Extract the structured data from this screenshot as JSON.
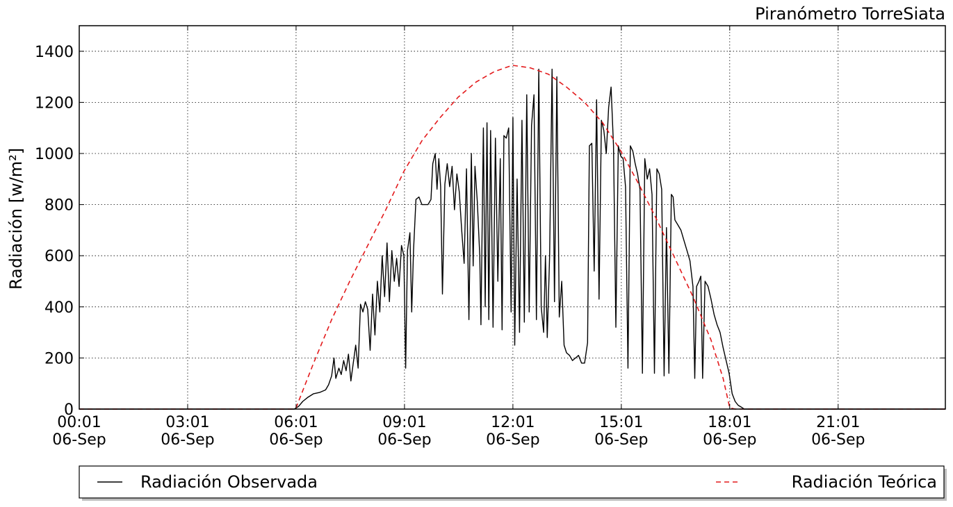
{
  "chart_data": {
    "type": "line",
    "title": "Piranómetro TorreSiata",
    "ylabel": "Radiación [w/m²]",
    "xlabel": "",
    "xlim": [
      "2000-09-06 00:01",
      "2000-09-06 23:59"
    ],
    "ylim": [
      0,
      1500
    ],
    "grid": true,
    "legend_placement": "bottom, outside plot",
    "y_ticks": [
      0,
      200,
      400,
      600,
      800,
      1000,
      1200,
      1400
    ],
    "x_ticks": [
      {
        "time": "00:01",
        "line1": "00:01",
        "line2": "06-Sep"
      },
      {
        "time": "03:01",
        "line1": "03:01",
        "line2": "06-Sep"
      },
      {
        "time": "06:01",
        "line1": "06:01",
        "line2": "06-Sep"
      },
      {
        "time": "09:01",
        "line1": "09:01",
        "line2": "06-Sep"
      },
      {
        "time": "12:01",
        "line1": "12:01",
        "line2": "06-Sep"
      },
      {
        "time": "15:01",
        "line1": "15:01",
        "line2": "06-Sep"
      },
      {
        "time": "18:01",
        "line1": "18:01",
        "line2": "06-Sep"
      },
      {
        "time": "21:01",
        "line1": "21:01",
        "line2": "06-Sep"
      }
    ],
    "series": [
      {
        "name": "Radiación Observada",
        "color": "#000000",
        "style": "solid",
        "points": [
          [
            "00:01",
            0
          ],
          [
            "05:58",
            0
          ],
          [
            "06:05",
            10
          ],
          [
            "06:12",
            30
          ],
          [
            "06:20",
            45
          ],
          [
            "06:30",
            60
          ],
          [
            "06:40",
            65
          ],
          [
            "06:50",
            75
          ],
          [
            "06:55",
            95
          ],
          [
            "07:00",
            130
          ],
          [
            "07:04",
            200
          ],
          [
            "07:07",
            120
          ],
          [
            "07:12",
            160
          ],
          [
            "07:16",
            135
          ],
          [
            "07:20",
            190
          ],
          [
            "07:24",
            150
          ],
          [
            "07:28",
            215
          ],
          [
            "07:32",
            110
          ],
          [
            "07:36",
            180
          ],
          [
            "07:40",
            250
          ],
          [
            "07:44",
            160
          ],
          [
            "07:48",
            410
          ],
          [
            "07:52",
            380
          ],
          [
            "07:56",
            420
          ],
          [
            "08:00",
            390
          ],
          [
            "08:04",
            230
          ],
          [
            "08:08",
            450
          ],
          [
            "08:12",
            290
          ],
          [
            "08:16",
            500
          ],
          [
            "08:20",
            380
          ],
          [
            "08:24",
            600
          ],
          [
            "08:28",
            440
          ],
          [
            "08:32",
            650
          ],
          [
            "08:36",
            420
          ],
          [
            "08:40",
            620
          ],
          [
            "08:44",
            500
          ],
          [
            "08:48",
            590
          ],
          [
            "08:52",
            480
          ],
          [
            "08:56",
            640
          ],
          [
            "09:00",
            600
          ],
          [
            "09:03",
            160
          ],
          [
            "09:06",
            620
          ],
          [
            "09:10",
            690
          ],
          [
            "09:13",
            380
          ],
          [
            "09:16",
            620
          ],
          [
            "09:20",
            820
          ],
          [
            "09:25",
            830
          ],
          [
            "09:30",
            800
          ],
          [
            "09:35",
            800
          ],
          [
            "09:40",
            800
          ],
          [
            "09:45",
            820
          ],
          [
            "09:48",
            960
          ],
          [
            "09:52",
            1000
          ],
          [
            "09:55",
            860
          ],
          [
            "09:58",
            980
          ],
          [
            "10:01",
            870
          ],
          [
            "10:04",
            450
          ],
          [
            "10:08",
            880
          ],
          [
            "10:12",
            960
          ],
          [
            "10:16",
            870
          ],
          [
            "10:20",
            950
          ],
          [
            "10:24",
            780
          ],
          [
            "10:28",
            920
          ],
          [
            "10:32",
            850
          ],
          [
            "10:36",
            700
          ],
          [
            "10:40",
            570
          ],
          [
            "10:44",
            940
          ],
          [
            "10:48",
            350
          ],
          [
            "10:52",
            1000
          ],
          [
            "10:55",
            560
          ],
          [
            "10:58",
            950
          ],
          [
            "11:02",
            810
          ],
          [
            "11:06",
            600
          ],
          [
            "11:08",
            330
          ],
          [
            "11:12",
            1100
          ],
          [
            "11:15",
            400
          ],
          [
            "11:18",
            1120
          ],
          [
            "11:21",
            350
          ],
          [
            "11:24",
            1090
          ],
          [
            "11:28",
            320
          ],
          [
            "11:32",
            1060
          ],
          [
            "11:36",
            500
          ],
          [
            "11:40",
            980
          ],
          [
            "11:43",
            310
          ],
          [
            "11:46",
            1070
          ],
          [
            "11:50",
            1060
          ],
          [
            "11:54",
            1100
          ],
          [
            "11:58",
            380
          ],
          [
            "12:01",
            1140
          ],
          [
            "12:04",
            250
          ],
          [
            "12:08",
            900
          ],
          [
            "12:12",
            300
          ],
          [
            "12:16",
            1130
          ],
          [
            "12:20",
            340
          ],
          [
            "12:24",
            1230
          ],
          [
            "12:28",
            380
          ],
          [
            "12:32",
            1110
          ],
          [
            "12:36",
            1230
          ],
          [
            "12:40",
            350
          ],
          [
            "12:44",
            1330
          ],
          [
            "12:48",
            400
          ],
          [
            "12:52",
            300
          ],
          [
            "12:55",
            600
          ],
          [
            "12:58",
            280
          ],
          [
            "13:02",
            600
          ],
          [
            "13:06",
            1330
          ],
          [
            "13:10",
            420
          ],
          [
            "13:14",
            1300
          ],
          [
            "13:18",
            360
          ],
          [
            "13:22",
            500
          ],
          [
            "13:26",
            250
          ],
          [
            "13:30",
            220
          ],
          [
            "13:35",
            210
          ],
          [
            "13:40",
            190
          ],
          [
            "13:45",
            200
          ],
          [
            "13:50",
            210
          ],
          [
            "13:55",
            180
          ],
          [
            "14:00",
            180
          ],
          [
            "14:05",
            260
          ],
          [
            "14:08",
            1030
          ],
          [
            "14:12",
            1040
          ],
          [
            "14:16",
            540
          ],
          [
            "14:20",
            1210
          ],
          [
            "14:24",
            430
          ],
          [
            "14:28",
            1130
          ],
          [
            "14:32",
            1090
          ],
          [
            "14:36",
            1000
          ],
          [
            "14:40",
            1180
          ],
          [
            "14:44",
            1260
          ],
          [
            "14:48",
            1030
          ],
          [
            "14:52",
            320
          ],
          [
            "14:56",
            1030
          ],
          [
            "15:00",
            990
          ],
          [
            "15:04",
            980
          ],
          [
            "15:08",
            870
          ],
          [
            "15:12",
            160
          ],
          [
            "15:16",
            1030
          ],
          [
            "15:20",
            1010
          ],
          [
            "15:24",
            960
          ],
          [
            "15:28",
            920
          ],
          [
            "15:32",
            860
          ],
          [
            "15:36",
            140
          ],
          [
            "15:40",
            980
          ],
          [
            "15:44",
            900
          ],
          [
            "15:48",
            940
          ],
          [
            "15:52",
            840
          ],
          [
            "15:56",
            140
          ],
          [
            "16:00",
            940
          ],
          [
            "16:04",
            920
          ],
          [
            "16:08",
            860
          ],
          [
            "16:12",
            130
          ],
          [
            "16:16",
            710
          ],
          [
            "16:20",
            140
          ],
          [
            "16:24",
            840
          ],
          [
            "16:27",
            830
          ],
          [
            "16:30",
            740
          ],
          [
            "16:35",
            720
          ],
          [
            "16:40",
            700
          ],
          [
            "16:45",
            660
          ],
          [
            "16:50",
            620
          ],
          [
            "16:55",
            580
          ],
          [
            "17:00",
            480
          ],
          [
            "17:03",
            120
          ],
          [
            "17:06",
            480
          ],
          [
            "17:10",
            500
          ],
          [
            "17:13",
            520
          ],
          [
            "17:16",
            120
          ],
          [
            "17:20",
            500
          ],
          [
            "17:25",
            480
          ],
          [
            "17:30",
            430
          ],
          [
            "17:35",
            370
          ],
          [
            "17:40",
            330
          ],
          [
            "17:45",
            300
          ],
          [
            "17:50",
            240
          ],
          [
            "17:55",
            190
          ],
          [
            "18:00",
            140
          ],
          [
            "18:05",
            60
          ],
          [
            "18:10",
            30
          ],
          [
            "18:15",
            15
          ],
          [
            "18:20",
            8
          ],
          [
            "18:25",
            0
          ],
          [
            "23:59",
            0
          ]
        ]
      },
      {
        "name": "Radiación Teórica",
        "color": "#e31a1c",
        "style": "dashed",
        "points": [
          [
            "00:01",
            0
          ],
          [
            "05:58",
            0
          ],
          [
            "06:01",
            5
          ],
          [
            "06:30",
            180
          ],
          [
            "07:00",
            350
          ],
          [
            "07:30",
            500
          ],
          [
            "08:00",
            640
          ],
          [
            "08:30",
            780
          ],
          [
            "09:00",
            930
          ],
          [
            "09:30",
            1050
          ],
          [
            "10:00",
            1140
          ],
          [
            "10:30",
            1220
          ],
          [
            "11:00",
            1280
          ],
          [
            "11:30",
            1320
          ],
          [
            "12:00",
            1345
          ],
          [
            "12:30",
            1335
          ],
          [
            "13:00",
            1310
          ],
          [
            "13:30",
            1260
          ],
          [
            "14:00",
            1200
          ],
          [
            "14:30",
            1120
          ],
          [
            "15:00",
            1010
          ],
          [
            "15:30",
            880
          ],
          [
            "16:00",
            740
          ],
          [
            "16:30",
            590
          ],
          [
            "17:00",
            440
          ],
          [
            "17:30",
            270
          ],
          [
            "17:50",
            120
          ],
          [
            "18:01",
            5
          ],
          [
            "18:10",
            0
          ],
          [
            "23:59",
            0
          ]
        ]
      }
    ],
    "legend": [
      {
        "label": "Radiación Observada",
        "color": "#000000",
        "style": "solid"
      },
      {
        "label": "Radiación Teórica",
        "color": "#e31a1c",
        "style": "dashed"
      }
    ]
  }
}
